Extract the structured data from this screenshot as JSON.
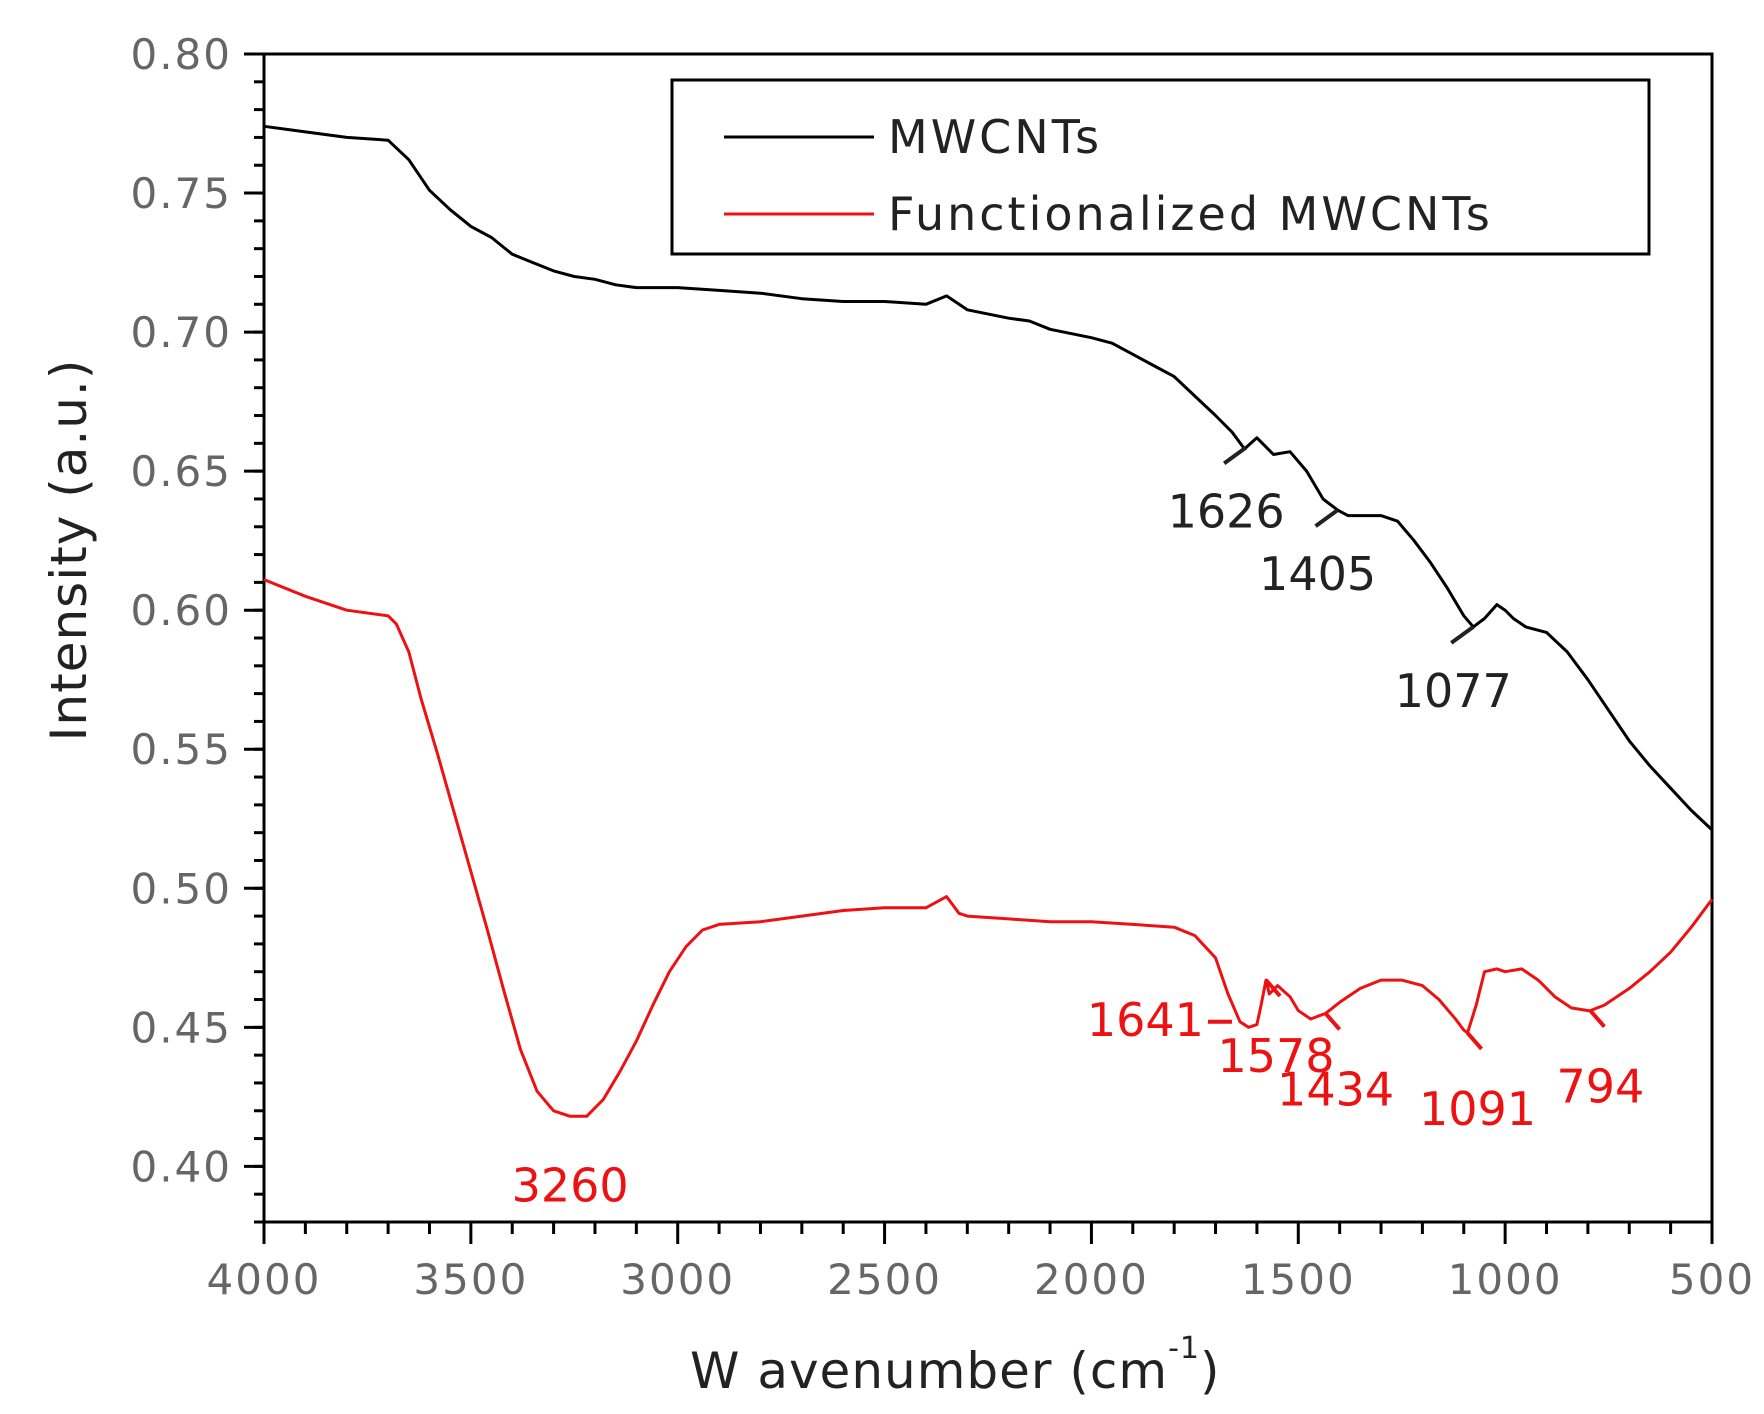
{
  "chart_data": {
    "type": "line",
    "xlabel": "W avenumber (cm",
    "xlabel_sup": "-1",
    "xlabel_close": ")",
    "ylabel": "Intensity (a.u.)",
    "xlim": [
      4000,
      500
    ],
    "ylim": [
      0.38,
      0.8
    ],
    "x_ticks": [
      {
        "value": 4000,
        "label": "4000"
      },
      {
        "value": 3500,
        "label": "3500"
      },
      {
        "value": 3000,
        "label": "3000"
      },
      {
        "value": 2500,
        "label": "2500"
      },
      {
        "value": 2000,
        "label": "2000"
      },
      {
        "value": 1500,
        "label": "1500"
      },
      {
        "value": 1000,
        "label": "1000"
      },
      {
        "value": 500,
        "label": "500"
      }
    ],
    "y_ticks": [
      {
        "value": 0.4,
        "label": "0.40"
      },
      {
        "value": 0.45,
        "label": "0.45"
      },
      {
        "value": 0.5,
        "label": "0.50"
      },
      {
        "value": 0.55,
        "label": "0.55"
      },
      {
        "value": 0.6,
        "label": "0.60"
      },
      {
        "value": 0.65,
        "label": "0.65"
      },
      {
        "value": 0.7,
        "label": "0.70"
      },
      {
        "value": 0.75,
        "label": "0.75"
      },
      {
        "value": 0.8,
        "label": "0.80"
      }
    ],
    "legend_position": "top-right",
    "series": [
      {
        "name": "MWCNTs",
        "color": "#000000",
        "x": [
          4000,
          3900,
          3800,
          3700,
          3650,
          3600,
          3550,
          3500,
          3450,
          3400,
          3350,
          3300,
          3250,
          3200,
          3150,
          3100,
          3000,
          2900,
          2800,
          2700,
          2600,
          2500,
          2400,
          2350,
          2300,
          2200,
          2150,
          2100,
          2000,
          1950,
          1900,
          1850,
          1800,
          1750,
          1700,
          1660,
          1630,
          1600,
          1560,
          1520,
          1480,
          1440,
          1405,
          1380,
          1340,
          1300,
          1260,
          1220,
          1180,
          1140,
          1100,
          1077,
          1050,
          1020,
          1000,
          980,
          950,
          900,
          850,
          800,
          750,
          700,
          650,
          600,
          550,
          500
        ],
        "y": [
          0.774,
          0.772,
          0.77,
          0.769,
          0.762,
          0.751,
          0.744,
          0.738,
          0.734,
          0.728,
          0.725,
          0.722,
          0.72,
          0.719,
          0.717,
          0.716,
          0.716,
          0.715,
          0.714,
          0.712,
          0.711,
          0.711,
          0.71,
          0.713,
          0.708,
          0.705,
          0.704,
          0.701,
          0.698,
          0.696,
          0.692,
          0.688,
          0.684,
          0.677,
          0.67,
          0.664,
          0.658,
          0.662,
          0.656,
          0.657,
          0.65,
          0.64,
          0.636,
          0.634,
          0.634,
          0.634,
          0.632,
          0.625,
          0.617,
          0.608,
          0.598,
          0.594,
          0.597,
          0.602,
          0.6,
          0.597,
          0.594,
          0.592,
          0.585,
          0.575,
          0.564,
          0.553,
          0.544,
          0.536,
          0.528,
          0.521
        ]
      },
      {
        "name": "Functionalized MWCNTs",
        "color": "#ee1111",
        "x": [
          4000,
          3900,
          3800,
          3700,
          3680,
          3650,
          3620,
          3580,
          3540,
          3500,
          3460,
          3420,
          3380,
          3340,
          3300,
          3260,
          3220,
          3180,
          3140,
          3100,
          3060,
          3020,
          2980,
          2940,
          2900,
          2800,
          2700,
          2600,
          2500,
          2400,
          2350,
          2320,
          2300,
          2200,
          2100,
          2000,
          1900,
          1800,
          1750,
          1700,
          1670,
          1641,
          1620,
          1600,
          1590,
          1578,
          1570,
          1550,
          1520,
          1500,
          1470,
          1434,
          1400,
          1350,
          1300,
          1250,
          1200,
          1160,
          1120,
          1100,
          1091,
          1070,
          1050,
          1020,
          1000,
          960,
          920,
          880,
          840,
          800,
          794,
          760,
          700,
          650,
          600,
          550,
          500
        ],
        "y": [
          0.611,
          0.605,
          0.6,
          0.598,
          0.595,
          0.585,
          0.568,
          0.548,
          0.527,
          0.506,
          0.485,
          0.463,
          0.442,
          0.427,
          0.42,
          0.418,
          0.418,
          0.424,
          0.434,
          0.445,
          0.458,
          0.47,
          0.479,
          0.485,
          0.487,
          0.488,
          0.49,
          0.492,
          0.493,
          0.493,
          0.497,
          0.491,
          0.49,
          0.489,
          0.488,
          0.488,
          0.487,
          0.486,
          0.483,
          0.475,
          0.462,
          0.452,
          0.45,
          0.451,
          0.458,
          0.467,
          0.462,
          0.465,
          0.461,
          0.456,
          0.453,
          0.455,
          0.459,
          0.464,
          0.467,
          0.467,
          0.465,
          0.46,
          0.453,
          0.449,
          0.448,
          0.458,
          0.47,
          0.471,
          0.47,
          0.471,
          0.467,
          0.461,
          0.457,
          0.456,
          0.456,
          0.458,
          0.464,
          0.47,
          0.477,
          0.486,
          0.496
        ]
      }
    ],
    "annotations": [
      {
        "label": "1626",
        "series": 0,
        "value": 1626,
        "color": "#222222"
      },
      {
        "label": "1405",
        "series": 0,
        "value": 1405,
        "color": "#222222"
      },
      {
        "label": "1077",
        "series": 0,
        "value": 1077,
        "color": "#222222"
      },
      {
        "label": "3260",
        "series": 1,
        "value": 3260,
        "color": "#ee1111"
      },
      {
        "label": "1641",
        "series": 1,
        "value": 1641,
        "color": "#ee1111"
      },
      {
        "label": "1578",
        "series": 1,
        "value": 1578,
        "color": "#ee1111"
      },
      {
        "label": "1434",
        "series": 1,
        "value": 1434,
        "color": "#ee1111"
      },
      {
        "label": "1091",
        "series": 1,
        "value": 1091,
        "color": "#ee1111"
      },
      {
        "label": "794",
        "series": 1,
        "value": 794,
        "color": "#ee1111"
      }
    ]
  }
}
